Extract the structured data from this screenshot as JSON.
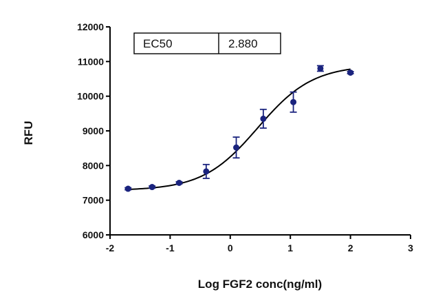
{
  "chart_data": {
    "type": "scatter",
    "xlabel": "Log FGF2 conc(ng/ml)",
    "ylabel": "RFU",
    "xlim": [
      -2,
      3
    ],
    "ylim": [
      6000,
      12000
    ],
    "xticks": [
      "-2",
      "-1",
      "0",
      "1",
      "2",
      "3"
    ],
    "yticks": [
      "6000",
      "7000",
      "8000",
      "9000",
      "10000",
      "11000",
      "12000"
    ],
    "grid": false,
    "marker_color": "#1a237e",
    "curve_color": "#000000",
    "points": [
      {
        "x": -1.7,
        "y": 7330,
        "err": 30
      },
      {
        "x": -1.3,
        "y": 7380,
        "err": 30
      },
      {
        "x": -0.85,
        "y": 7500,
        "err": 30
      },
      {
        "x": -0.4,
        "y": 7830,
        "err": 200
      },
      {
        "x": 0.1,
        "y": 8520,
        "err": 300
      },
      {
        "x": 0.55,
        "y": 9350,
        "err": 270
      },
      {
        "x": 1.05,
        "y": 9830,
        "err": 290
      },
      {
        "x": 1.5,
        "y": 10800,
        "err": 80
      },
      {
        "x": 2.0,
        "y": 10680,
        "err": 30
      }
    ],
    "fit": {
      "model": "four-parameter logistic",
      "bottom": 7280,
      "top": 10900,
      "logEC50": 0.459,
      "hill": 0.95
    },
    "table": {
      "label": "EC50",
      "value": "2.880"
    }
  }
}
